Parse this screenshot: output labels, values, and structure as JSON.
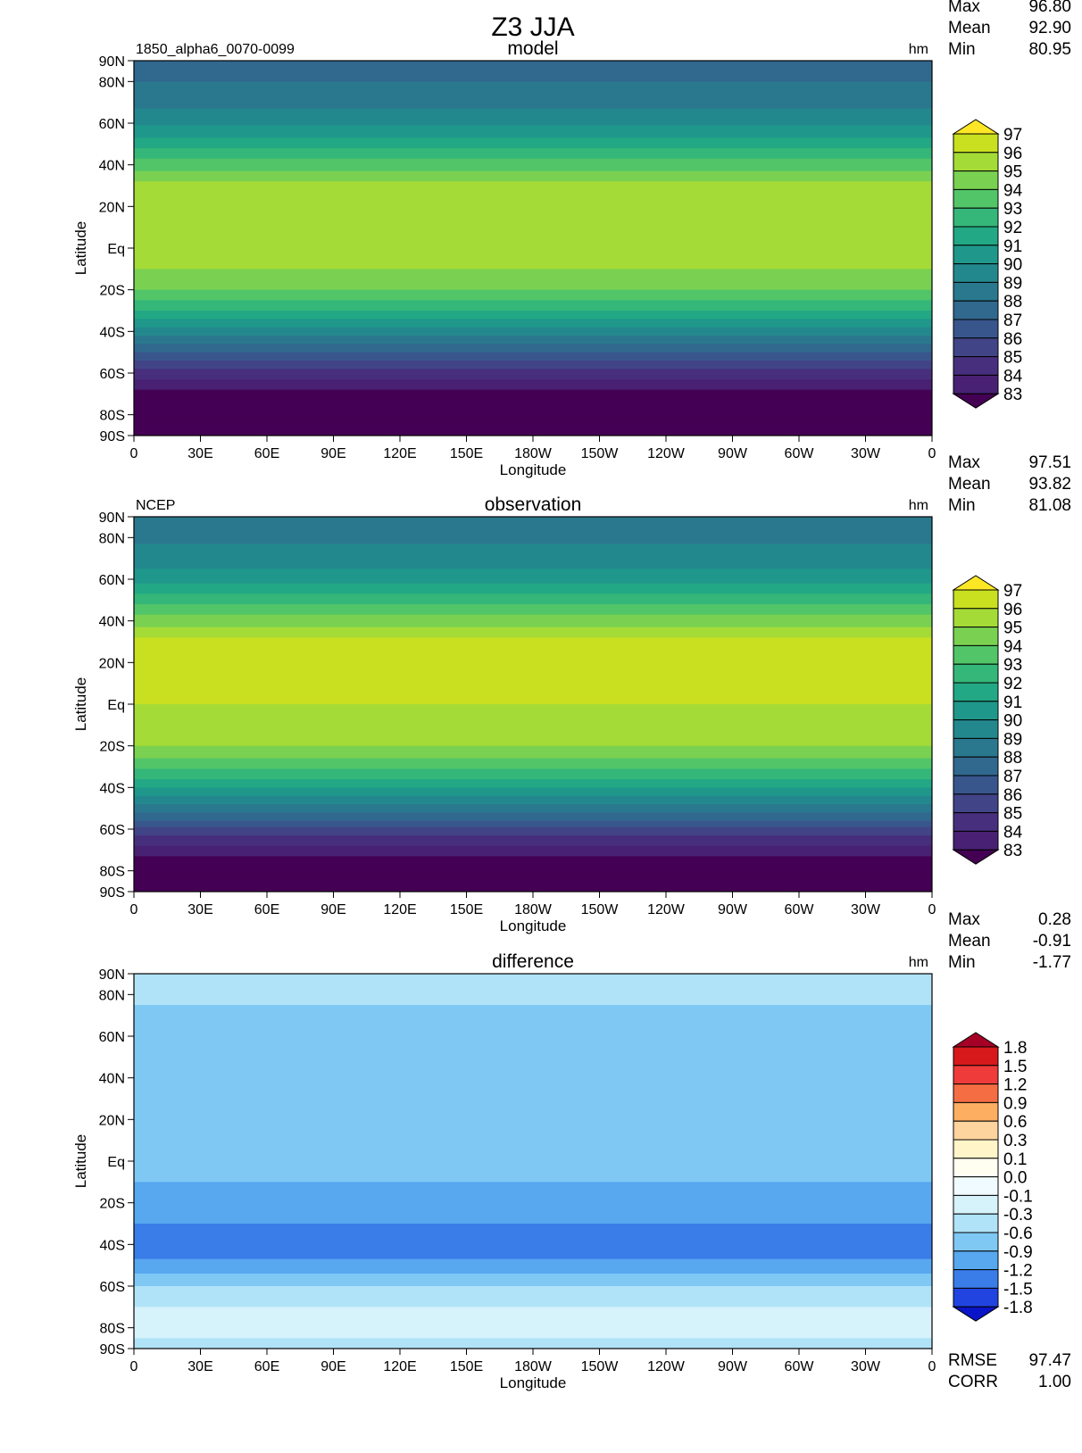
{
  "title": "Z3 JJA",
  "panels": [
    {
      "id": "model",
      "left_label": "1850_alpha6_0070-0099",
      "center_label": "model",
      "units": "hm",
      "stats": [
        {
          "label": "Max",
          "value": "96.80"
        },
        {
          "label": "Mean",
          "value": "92.90"
        },
        {
          "label": "Min",
          "value": "80.95"
        }
      ],
      "colorbar": "levels_z3"
    },
    {
      "id": "observation",
      "left_label": "NCEP",
      "center_label": "observation",
      "units": "hm",
      "stats": [
        {
          "label": "Max",
          "value": "97.51"
        },
        {
          "label": "Mean",
          "value": "93.82"
        },
        {
          "label": "Min",
          "value": "81.08"
        }
      ],
      "colorbar": "levels_z3"
    },
    {
      "id": "difference",
      "left_label": "",
      "center_label": "difference",
      "units": "hm",
      "stats": [
        {
          "label": "Max",
          "value": "0.28"
        },
        {
          "label": "Mean",
          "value": "-0.91"
        },
        {
          "label": "Min",
          "value": "-1.77"
        }
      ],
      "colorbar": "levels_diff",
      "footer_stats": [
        {
          "label": "RMSE",
          "value": "97.47"
        },
        {
          "label": "CORR",
          "value": "1.00"
        }
      ]
    }
  ],
  "axes": {
    "ylabel": "Latitude",
    "xlabel": "Longitude",
    "lat_ticks": [
      "90N",
      "80N",
      "60N",
      "40N",
      "20N",
      "Eq",
      "20S",
      "40S",
      "60S",
      "80S",
      "90S"
    ],
    "lat_values": [
      90,
      80,
      60,
      40,
      20,
      0,
      -20,
      -40,
      -60,
      -80,
      -90
    ],
    "lon_ticks": [
      "0",
      "30E",
      "60E",
      "90E",
      "120E",
      "150E",
      "180W",
      "150W",
      "120W",
      "90W",
      "60W",
      "30W",
      "0"
    ],
    "lon_values": [
      0,
      30,
      60,
      90,
      120,
      150,
      180,
      210,
      240,
      270,
      300,
      330,
      360
    ]
  },
  "colorbars": {
    "levels_z3": {
      "labels": [
        "97",
        "96",
        "95",
        "94",
        "93",
        "92",
        "91",
        "90",
        "89",
        "88",
        "87",
        "86",
        "85",
        "84",
        "83"
      ],
      "colors": [
        "#fde725",
        "#c8e020",
        "#a5db36",
        "#7ad151",
        "#52c569",
        "#35b779",
        "#22a884",
        "#1f988b",
        "#23888e",
        "#2a788e",
        "#31688e",
        "#39568c",
        "#414487",
        "#472f7d",
        "#482173",
        "#440154"
      ]
    },
    "levels_diff": {
      "labels": [
        "1.8",
        "1.5",
        "1.2",
        "0.9",
        "0.6",
        "0.3",
        "0.1",
        "0.0",
        "-0.1",
        "-0.3",
        "-0.6",
        "-0.9",
        "-1.2",
        "-1.5",
        "-1.8"
      ],
      "colors": [
        "#a50026",
        "#d7191c",
        "#f03b3b",
        "#f46d43",
        "#fdae61",
        "#fdd49e",
        "#fff5c8",
        "#fffef0",
        "#f0fbff",
        "#d6f2fb",
        "#b0e3f7",
        "#7fc8f4",
        "#57a8ef",
        "#3a7de8",
        "#2144e0",
        "#0a14c8"
      ]
    }
  },
  "chart_data": [
    {
      "type": "heatmap",
      "title": "model",
      "subtitle": "1850_alpha6_0070-0099",
      "variable": "Z3",
      "units": "hm",
      "xlabel": "Longitude",
      "ylabel": "Latitude",
      "xlim": [
        0,
        360
      ],
      "ylim": [
        -90,
        90
      ],
      "stats": {
        "max": 96.8,
        "mean": 92.9,
        "min": 80.95
      },
      "zonal_profile": {
        "lat": [
          -90,
          -80,
          -70,
          -60,
          -50,
          -40,
          -30,
          -20,
          -10,
          0,
          10,
          20,
          30,
          40,
          50,
          60,
          70,
          80,
          90
        ],
        "value": [
          81.0,
          81.5,
          82.5,
          84.5,
          87.0,
          89.5,
          92.0,
          94.0,
          95.0,
          95.3,
          95.6,
          95.8,
          95.3,
          93.5,
          91.5,
          89.8,
          88.6,
          88.0,
          87.8
        ]
      },
      "contour_levels": [
        83,
        84,
        85,
        86,
        87,
        88,
        89,
        90,
        91,
        92,
        93,
        94,
        95,
        96,
        97
      ]
    },
    {
      "type": "heatmap",
      "title": "observation",
      "subtitle": "NCEP",
      "variable": "Z3",
      "units": "hm",
      "xlabel": "Longitude",
      "ylabel": "Latitude",
      "xlim": [
        0,
        360
      ],
      "ylim": [
        -90,
        90
      ],
      "stats": {
        "max": 97.51,
        "mean": 93.82,
        "min": 81.08
      },
      "zonal_profile": {
        "lat": [
          -90,
          -80,
          -70,
          -60,
          -50,
          -40,
          -30,
          -20,
          -10,
          0,
          10,
          20,
          30,
          40,
          50,
          60,
          70,
          80,
          90
        ],
        "value": [
          81.1,
          82.0,
          83.5,
          85.8,
          88.5,
          91.0,
          93.3,
          95.0,
          95.8,
          96.0,
          96.3,
          96.7,
          96.3,
          94.5,
          92.5,
          90.6,
          89.4,
          88.8,
          88.6
        ]
      },
      "contour_levels": [
        83,
        84,
        85,
        86,
        87,
        88,
        89,
        90,
        91,
        92,
        93,
        94,
        95,
        96,
        97
      ]
    },
    {
      "type": "heatmap",
      "title": "difference",
      "variable": "Z3",
      "units": "hm",
      "xlabel": "Longitude",
      "ylabel": "Latitude",
      "xlim": [
        0,
        360
      ],
      "ylim": [
        -90,
        90
      ],
      "stats": {
        "max": 0.28,
        "mean": -0.91,
        "min": -1.77,
        "rmse": 97.47,
        "corr": 1.0
      },
      "zonal_profile": {
        "lat": [
          -90,
          -80,
          -70,
          -60,
          -50,
          -40,
          -30,
          -20,
          -10,
          0,
          10,
          20,
          30,
          40,
          50,
          60,
          70,
          80,
          90
        ],
        "value": [
          -0.4,
          -0.2,
          -0.3,
          -0.6,
          -1.1,
          -1.4,
          -1.2,
          -1.0,
          -0.9,
          -0.9,
          -0.9,
          -0.9,
          -0.9,
          -0.8,
          -0.8,
          -0.8,
          -0.7,
          -0.5,
          -0.3
        ]
      },
      "contour_levels": [
        -1.8,
        -1.5,
        -1.2,
        -0.9,
        -0.6,
        -0.3,
        -0.1,
        0.0,
        0.1,
        0.3,
        0.6,
        0.9,
        1.2,
        1.5,
        1.8
      ]
    }
  ]
}
